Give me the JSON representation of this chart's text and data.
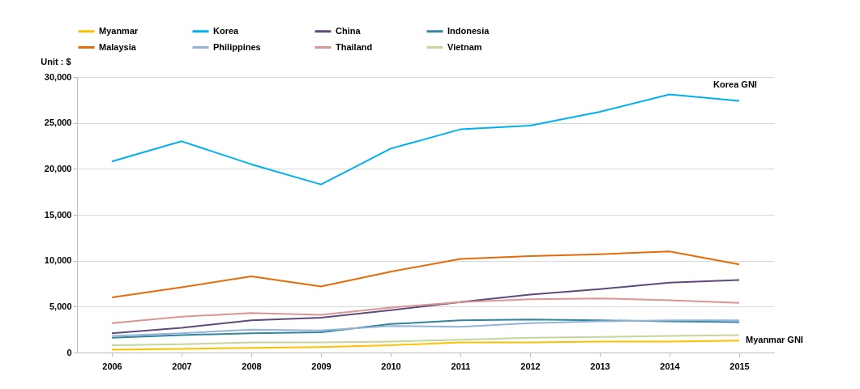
{
  "chart_data": {
    "type": "line",
    "ylabel": "Unit : $",
    "categories": [
      "2006",
      "2007",
      "2008",
      "2009",
      "2010",
      "2011",
      "2012",
      "2013",
      "2014",
      "2015"
    ],
    "ylim": [
      0,
      30000
    ],
    "yticks": [
      {
        "value": 0,
        "label": "0"
      },
      {
        "value": 5000,
        "label": "5,000"
      },
      {
        "value": 10000,
        "label": "10,000"
      },
      {
        "value": 15000,
        "label": "15,000"
      },
      {
        "value": 20000,
        "label": "20,000"
      },
      {
        "value": 25000,
        "label": "25,000"
      },
      {
        "value": 30000,
        "label": "30,000"
      }
    ],
    "grid": "y",
    "legend": "top",
    "line_style": "solid",
    "series": [
      {
        "name": "Myanmar",
        "color": "#ffc000",
        "values": [
          300,
          400,
          500,
          600,
          800,
          1100,
          1100,
          1200,
          1200,
          1300
        ]
      },
      {
        "name": "Korea",
        "color": "#00b0f0",
        "values": [
          20800,
          23000,
          20500,
          18300,
          22200,
          24300,
          24700,
          26200,
          28100,
          27400
        ]
      },
      {
        "name": "China",
        "color": "#604a7b",
        "values": [
          2100,
          2700,
          3500,
          3800,
          4600,
          5500,
          6300,
          6900,
          7600,
          7900
        ]
      },
      {
        "name": "Indonesia",
        "color": "#31859c",
        "values": [
          1600,
          1900,
          2100,
          2200,
          3100,
          3500,
          3600,
          3500,
          3400,
          3300
        ]
      },
      {
        "name": "Malaysia",
        "color": "#e46c0a",
        "values": [
          6000,
          7100,
          8300,
          7200,
          8800,
          10200,
          10500,
          10700,
          11000,
          9600
        ]
      },
      {
        "name": "Philippines",
        "color": "#95b3d7",
        "values": [
          1800,
          2100,
          2500,
          2400,
          2900,
          2800,
          3200,
          3400,
          3500,
          3500
        ]
      },
      {
        "name": "Thailand",
        "color": "#d99694",
        "values": [
          3200,
          3900,
          4300,
          4100,
          4900,
          5500,
          5800,
          5900,
          5700,
          5400
        ]
      },
      {
        "name": "Vietnam",
        "color": "#c3d69b",
        "values": [
          800,
          900,
          1100,
          1100,
          1200,
          1400,
          1600,
          1700,
          1800,
          1900
        ]
      }
    ],
    "annotations": [
      {
        "text": "Korea GNI",
        "x": "2015",
        "y": 27400
      },
      {
        "text": "Myanmar GNI",
        "x": "2015",
        "y": 1300
      }
    ]
  }
}
